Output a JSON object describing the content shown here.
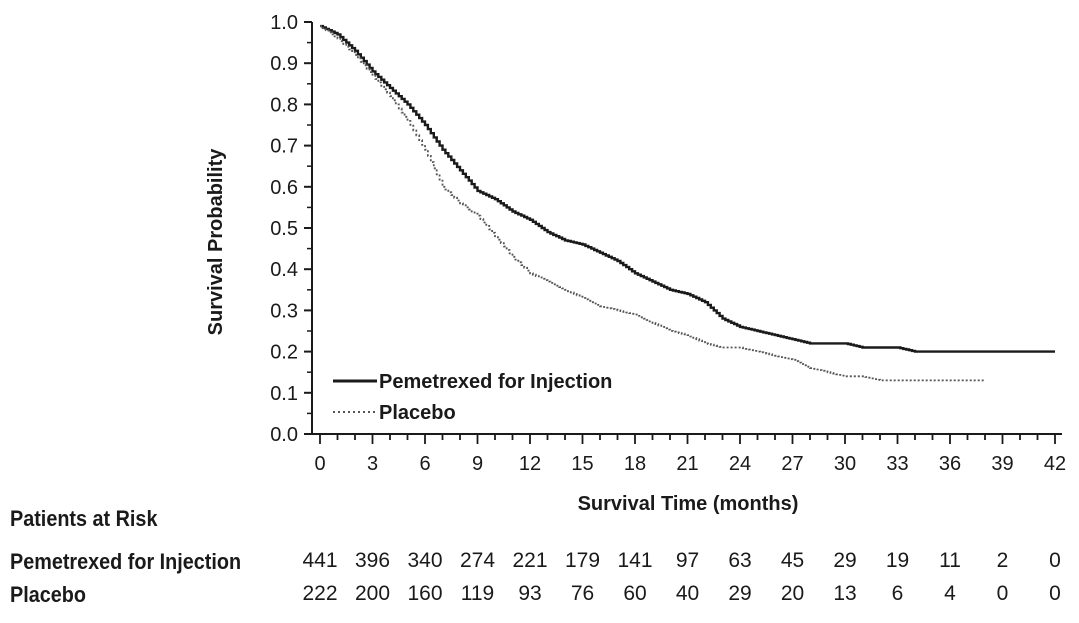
{
  "chart_data": {
    "type": "line",
    "ylabel": "Survival Probability",
    "xlabel": "Survival Time (months)",
    "xlim": [
      0,
      42
    ],
    "ylim": [
      0,
      1.0
    ],
    "x_ticks": [
      0,
      3,
      6,
      9,
      12,
      15,
      18,
      21,
      24,
      27,
      30,
      33,
      36,
      39,
      42
    ],
    "y_ticks": [
      "0.0",
      "0.1",
      "0.2",
      "0.3",
      "0.4",
      "0.5",
      "0.6",
      "0.7",
      "0.8",
      "0.9",
      "1.0"
    ],
    "legend": [
      "Pemetrexed for Injection",
      "Placebo"
    ],
    "series": [
      {
        "name": "Pemetrexed for Injection",
        "style": "solid",
        "color": "#1a1a1a",
        "x": [
          0,
          1,
          2,
          3,
          4,
          5,
          6,
          7,
          8,
          9,
          10,
          11,
          12,
          13,
          14,
          15,
          16,
          17,
          18,
          19,
          20,
          21,
          22,
          23,
          24,
          25,
          26,
          27,
          28,
          29,
          30,
          31,
          32,
          33,
          34,
          35,
          36,
          37,
          38,
          39,
          40,
          41,
          42
        ],
        "values": [
          0.99,
          0.97,
          0.93,
          0.88,
          0.84,
          0.8,
          0.75,
          0.69,
          0.64,
          0.59,
          0.57,
          0.54,
          0.52,
          0.49,
          0.47,
          0.46,
          0.44,
          0.42,
          0.39,
          0.37,
          0.35,
          0.34,
          0.32,
          0.28,
          0.26,
          0.25,
          0.24,
          0.23,
          0.22,
          0.22,
          0.22,
          0.21,
          0.21,
          0.21,
          0.2,
          0.2,
          0.2,
          0.2,
          0.2,
          0.2,
          0.2,
          0.2,
          0.2
        ]
      },
      {
        "name": "Placebo",
        "style": "dotted",
        "color": "#555555",
        "x": [
          0,
          1,
          2,
          3,
          4,
          5,
          6,
          7,
          8,
          9,
          10,
          11,
          12,
          13,
          14,
          15,
          16,
          17,
          18,
          19,
          20,
          21,
          22,
          23,
          24,
          25,
          26,
          27,
          28,
          29,
          30,
          31,
          32,
          33,
          34,
          35,
          36,
          37,
          38
        ],
        "values": [
          0.99,
          0.96,
          0.92,
          0.87,
          0.82,
          0.76,
          0.69,
          0.6,
          0.56,
          0.53,
          0.48,
          0.43,
          0.39,
          0.37,
          0.35,
          0.33,
          0.31,
          0.3,
          0.29,
          0.27,
          0.25,
          0.24,
          0.22,
          0.21,
          0.21,
          0.2,
          0.19,
          0.18,
          0.16,
          0.15,
          0.14,
          0.14,
          0.13,
          0.13,
          0.13,
          0.13,
          0.13,
          0.13,
          0.13
        ]
      }
    ]
  },
  "patients_at_risk": {
    "title": "Patients at Risk",
    "rows": [
      {
        "label": "Pemetrexed for Injection",
        "values": [
          "441",
          "396",
          "340",
          "274",
          "221",
          "179",
          "141",
          "97",
          "63",
          "45",
          "29",
          "19",
          "11",
          "2",
          "0"
        ]
      },
      {
        "label": "Placebo",
        "values": [
          "222",
          "200",
          "160",
          "119",
          "93",
          "76",
          "60",
          "40",
          "29",
          "20",
          "13",
          "6",
          "4",
          "0",
          "0"
        ]
      }
    ]
  }
}
